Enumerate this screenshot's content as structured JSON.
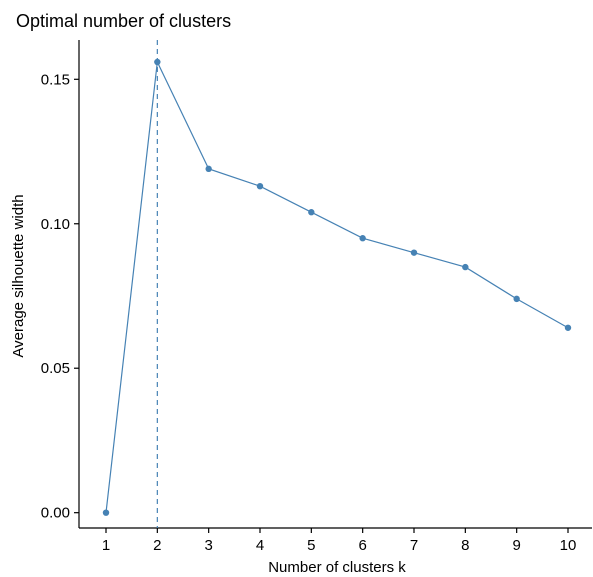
{
  "chart_data": {
    "type": "line",
    "title": "Optimal number of clusters",
    "xlabel": "Number of clusters k",
    "ylabel": "Average silhouette width",
    "x": [
      1,
      2,
      3,
      4,
      5,
      6,
      7,
      8,
      9,
      10
    ],
    "x_tick_labels": [
      "1",
      "2",
      "3",
      "4",
      "5",
      "6",
      "7",
      "8",
      "9",
      "10"
    ],
    "series": [
      {
        "values": [
          0.0,
          0.156,
          0.119,
          0.113,
          0.104,
          0.095,
          0.09,
          0.085,
          0.074,
          0.064
        ],
        "color": "#4682B4"
      }
    ],
    "y_ticks": [
      0.0,
      0.05,
      0.1,
      0.15
    ],
    "y_tick_labels": [
      "0.00",
      "0.05",
      "0.10",
      "0.15"
    ],
    "ylim": [
      -0.0053,
      0.1636
    ],
    "optimal_k": 2,
    "grid": false,
    "reference_line": {
      "style": "dashed",
      "color": "#4682B4"
    }
  }
}
